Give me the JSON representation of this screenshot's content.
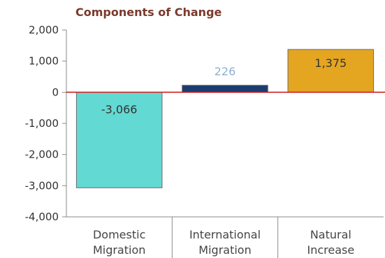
{
  "chart_data": {
    "type": "bar",
    "title": "Components of Change",
    "xlabel": "",
    "ylabel": "",
    "categories": [
      [
        "Domestic",
        "Migration"
      ],
      [
        "International",
        "Migration"
      ],
      [
        "Natural",
        "Increase"
      ]
    ],
    "values": [
      -3066,
      226,
      1375
    ],
    "data_labels": [
      "-3,066",
      "226",
      "1,375"
    ],
    "bar_colors": [
      "#62d9d2",
      "#1c3c70",
      "#e4a521"
    ],
    "label_colors": [
      "#333333",
      "#8fb0d2",
      "#333333"
    ],
    "ylim": [
      -4000,
      2000
    ],
    "yticks": [
      2000,
      1000,
      0,
      -1000,
      -2000,
      -3000,
      -4000
    ],
    "ytick_labels": [
      "2,000",
      "1,000",
      "0",
      "-1,000",
      "-2,000",
      "-3,000",
      "-4,000"
    ],
    "zero_line_color": "#cc2222",
    "grid": false,
    "legend": "none"
  }
}
